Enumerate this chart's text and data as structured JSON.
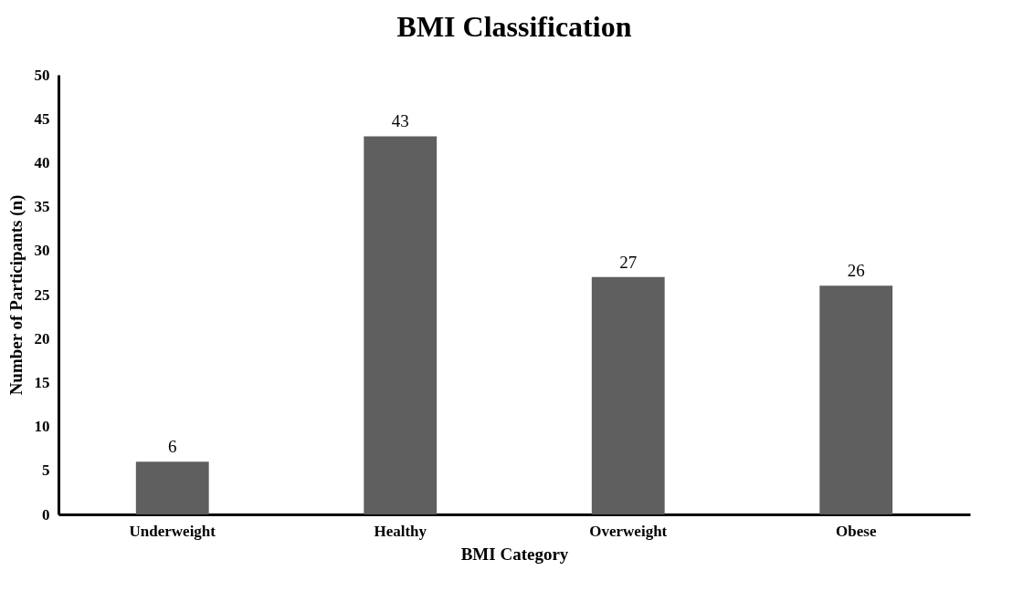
{
  "chart_data": {
    "type": "bar",
    "title": "BMI Classification",
    "xlabel": "BMI Category",
    "ylabel": "Number of Participants (n)",
    "categories": [
      "Underweight",
      "Healthy",
      "Overweight",
      "Obese"
    ],
    "values": [
      6,
      43,
      27,
      26
    ],
    "color": "#5f5f5f",
    "ylim": [
      0,
      50
    ],
    "yticks": [
      0,
      5,
      10,
      15,
      20,
      25,
      30,
      35,
      40,
      45,
      50
    ],
    "grid": false,
    "data_labels": true
  }
}
